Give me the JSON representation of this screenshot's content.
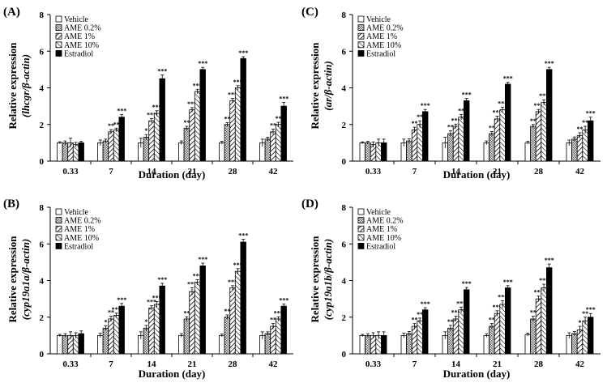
{
  "figure": {
    "legend_labels": [
      "Vehicle",
      "AME 0.2%",
      "AME 1%",
      "AME 10%",
      "Estradiol"
    ],
    "series_fill": [
      "#ffffff",
      "#d9d9d9",
      "#ffffff",
      "#ffffff",
      "#000000"
    ],
    "series_hatch": [
      "none",
      "checker",
      "diag-right",
      "diag-left",
      "solid"
    ]
  },
  "chart_data": [
    {
      "type": "bar",
      "panel_label": "(A)",
      "ylabel_line1": "Relative  expression",
      "ylabel_line2": "(lhcgr/β-actin)",
      "xlabel": "Duration (day)",
      "categories": [
        "0.33",
        "7",
        "14",
        "21",
        "28",
        "42"
      ],
      "ylim": [
        0,
        8
      ],
      "yticks": [
        0,
        2,
        4,
        6,
        8
      ],
      "series": [
        {
          "name": "Vehicle",
          "values": [
            1.0,
            1.0,
            1.0,
            1.0,
            1.0,
            1.0
          ],
          "errors": [
            0.06,
            0.15,
            0.25,
            0.1,
            0.08,
            0.2
          ],
          "sig": [
            "",
            "",
            "",
            "",
            "",
            ""
          ]
        },
        {
          "name": "AME 0.2%",
          "values": [
            1.0,
            1.1,
            1.3,
            1.8,
            2.0,
            1.2
          ],
          "errors": [
            0.1,
            0.1,
            0.15,
            0.1,
            0.1,
            0.1
          ],
          "sig": [
            "",
            "",
            "*",
            "**",
            "**",
            ""
          ]
        },
        {
          "name": "AME 1%",
          "values": [
            1.0,
            1.6,
            2.2,
            2.8,
            3.3,
            1.6
          ],
          "errors": [
            0.25,
            0.12,
            0.12,
            0.12,
            0.12,
            0.15
          ],
          "sig": [
            "",
            "**",
            "***",
            "***",
            "***",
            "**"
          ]
        },
        {
          "name": "AME 10%",
          "values": [
            0.9,
            1.7,
            2.6,
            3.8,
            4.0,
            2.0
          ],
          "errors": [
            0.12,
            0.1,
            0.15,
            0.12,
            0.12,
            0.12
          ],
          "sig": [
            "",
            "**",
            "***",
            "***",
            "***",
            "**"
          ]
        },
        {
          "name": "Estradiol",
          "values": [
            1.0,
            2.4,
            4.5,
            5.0,
            5.6,
            3.0
          ],
          "errors": [
            0.08,
            0.15,
            0.2,
            0.12,
            0.1,
            0.2
          ],
          "sig": [
            "",
            "***",
            "***",
            "***",
            "***",
            "***"
          ]
        }
      ]
    },
    {
      "type": "bar",
      "panel_label": "(C)",
      "ylabel_line1": "Relative  expression",
      "ylabel_line2": "(ar/β-actin)",
      "xlabel": "Duration (day)",
      "categories": [
        "0.33",
        "7",
        "14",
        "21",
        "28",
        "42"
      ],
      "ylim": [
        0,
        8
      ],
      "yticks": [
        0,
        2,
        4,
        6,
        8
      ],
      "series": [
        {
          "name": "Vehicle",
          "values": [
            1.0,
            1.0,
            1.0,
            1.0,
            1.0,
            1.0
          ],
          "errors": [
            0.05,
            0.2,
            0.3,
            0.1,
            0.08,
            0.15
          ],
          "sig": [
            "",
            "",
            "",
            "",
            "",
            ""
          ]
        },
        {
          "name": "AME 0.2%",
          "values": [
            1.0,
            1.1,
            1.5,
            1.5,
            1.9,
            1.2
          ],
          "errors": [
            0.08,
            0.12,
            0.15,
            0.12,
            0.1,
            0.12
          ],
          "sig": [
            "",
            "",
            "**",
            "**",
            "**",
            ""
          ]
        },
        {
          "name": "AME 1%",
          "values": [
            0.9,
            1.7,
            1.9,
            2.3,
            2.7,
            1.4
          ],
          "errors": [
            0.15,
            0.15,
            0.12,
            0.15,
            0.12,
            0.15
          ],
          "sig": [
            "",
            "**",
            "***",
            "***",
            "***",
            "**"
          ]
        },
        {
          "name": "AME 10%",
          "values": [
            1.0,
            2.0,
            2.4,
            2.8,
            3.2,
            1.7
          ],
          "errors": [
            0.2,
            0.2,
            0.15,
            0.15,
            0.15,
            0.2
          ],
          "sig": [
            "",
            "**",
            "**",
            "***",
            "***",
            "**"
          ]
        },
        {
          "name": "Estradiol",
          "values": [
            1.0,
            2.7,
            3.3,
            4.2,
            5.0,
            2.2
          ],
          "errors": [
            0.2,
            0.12,
            0.12,
            0.1,
            0.12,
            0.2
          ],
          "sig": [
            "",
            "***",
            "***",
            "***",
            "***",
            "***"
          ]
        }
      ]
    },
    {
      "type": "bar",
      "panel_label": "(B)",
      "ylabel_line1": "Relative  expression",
      "ylabel_line2": "(cyp19a1a/β-actin)",
      "xlabel": "Duration (day)",
      "categories": [
        "0.33",
        "7",
        "14",
        "21",
        "28",
        "42"
      ],
      "ylim": [
        0,
        8
      ],
      "yticks": [
        0,
        2,
        4,
        6,
        8
      ],
      "series": [
        {
          "name": "Vehicle",
          "values": [
            1.0,
            1.0,
            1.0,
            1.0,
            1.0,
            1.0
          ],
          "errors": [
            0.06,
            0.12,
            0.2,
            0.1,
            0.08,
            0.2
          ],
          "sig": [
            "",
            "",
            "",
            "",
            "",
            ""
          ]
        },
        {
          "name": "AME 0.2%",
          "values": [
            1.0,
            1.4,
            1.4,
            1.9,
            2.0,
            1.1
          ],
          "errors": [
            0.1,
            0.12,
            0.15,
            0.12,
            0.12,
            0.1
          ],
          "sig": [
            "",
            "*",
            "*",
            "**",
            "**",
            ""
          ]
        },
        {
          "name": "AME 1%",
          "values": [
            1.0,
            1.9,
            2.5,
            3.4,
            3.6,
            1.5
          ],
          "errors": [
            0.2,
            0.15,
            0.12,
            0.2,
            0.12,
            0.15
          ],
          "sig": [
            "",
            "**",
            "***",
            "***",
            "***",
            "**"
          ]
        },
        {
          "name": "AME 10%",
          "values": [
            1.0,
            2.1,
            2.7,
            3.9,
            4.5,
            1.9
          ],
          "errors": [
            0.15,
            0.12,
            0.15,
            0.15,
            0.15,
            0.12
          ],
          "sig": [
            "",
            "***",
            "***",
            "***",
            "***",
            "***"
          ]
        },
        {
          "name": "Estradiol",
          "values": [
            1.1,
            2.6,
            3.7,
            4.8,
            6.1,
            2.6
          ],
          "errors": [
            0.15,
            0.15,
            0.15,
            0.15,
            0.15,
            0.12
          ],
          "sig": [
            "",
            "***",
            "***",
            "***",
            "***",
            "***"
          ]
        }
      ]
    },
    {
      "type": "bar",
      "panel_label": "(D)",
      "ylabel_line1": "Relative  expression",
      "ylabel_line2": "(cyp19a1b/β-actin)",
      "xlabel": "Duration (day)",
      "categories": [
        "0.33",
        "7",
        "14",
        "21",
        "28",
        "42"
      ],
      "ylim": [
        0,
        8
      ],
      "yticks": [
        0,
        2,
        4,
        6,
        8
      ],
      "series": [
        {
          "name": "Vehicle",
          "values": [
            1.0,
            1.0,
            1.0,
            1.0,
            1.05,
            1.0
          ],
          "errors": [
            0.06,
            0.12,
            0.2,
            0.1,
            0.08,
            0.15
          ],
          "sig": [
            "",
            "",
            "",
            "",
            "",
            ""
          ]
        },
        {
          "name": "AME 0.2%",
          "values": [
            1.0,
            1.1,
            1.4,
            1.5,
            1.9,
            1.1
          ],
          "errors": [
            0.1,
            0.12,
            0.15,
            0.15,
            0.15,
            0.12
          ],
          "sig": [
            "",
            "",
            "**",
            "**",
            "**",
            ""
          ]
        },
        {
          "name": "AME 1%",
          "values": [
            1.0,
            1.5,
            1.9,
            2.2,
            3.0,
            1.3
          ],
          "errors": [
            0.15,
            0.15,
            0.15,
            0.15,
            0.15,
            0.2
          ],
          "sig": [
            "",
            "**",
            "***",
            "***",
            "***",
            "*"
          ]
        },
        {
          "name": "AME 10%",
          "values": [
            1.0,
            1.8,
            2.4,
            2.7,
            3.6,
            1.8
          ],
          "errors": [
            0.2,
            0.15,
            0.15,
            0.2,
            0.2,
            0.2
          ],
          "sig": [
            "",
            "**",
            "***",
            "***",
            "***",
            "**"
          ]
        },
        {
          "name": "Estradiol",
          "values": [
            1.0,
            2.4,
            3.5,
            3.6,
            4.7,
            2.0
          ],
          "errors": [
            0.2,
            0.12,
            0.12,
            0.12,
            0.2,
            0.2
          ],
          "sig": [
            "",
            "***",
            "***",
            "***",
            "***",
            "***"
          ]
        }
      ]
    }
  ]
}
